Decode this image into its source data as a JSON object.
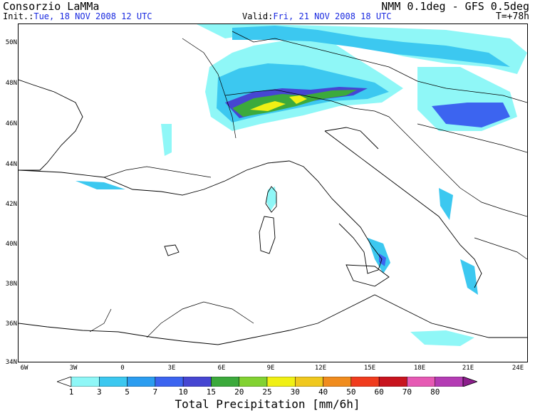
{
  "header": {
    "org": "Consorzio LaMMa",
    "model": "NMM 0.1deg - GFS 0.5deg",
    "init_label": "Init.:",
    "init_value": "Tue, 18 NOV 2008  12 UTC",
    "valid_label": "Valid:",
    "valid_value": "Fri, 21 NOV 2008  18 UTC",
    "step": "T=+78h"
  },
  "colors": {
    "accent": "#1a2ae0"
  },
  "map": {
    "lat_labels": [
      "50N",
      "48N",
      "46N",
      "44N",
      "42N",
      "40N",
      "38N",
      "36N",
      "34N"
    ],
    "lon_labels": [
      "6W",
      "3W",
      "0",
      "3E",
      "6E",
      "9E",
      "12E",
      "15E",
      "18E",
      "21E",
      "24E"
    ]
  },
  "colorbar": {
    "title": "Total Precipitation [mm/6h]",
    "levels": [
      "1",
      "3",
      "5",
      "7",
      "10",
      "15",
      "20",
      "25",
      "30",
      "40",
      "50",
      "60",
      "70",
      "80"
    ],
    "colors": [
      "#ffffff",
      "#8ff7f7",
      "#3cc8f0",
      "#2b9df0",
      "#3c64f0",
      "#4646d2",
      "#3caa3c",
      "#82d232",
      "#f0f014",
      "#f0c81e",
      "#f08c1e",
      "#f03c1e",
      "#c8141e",
      "#e65ab4",
      "#b43cb4",
      "#8c1e8c"
    ]
  }
}
